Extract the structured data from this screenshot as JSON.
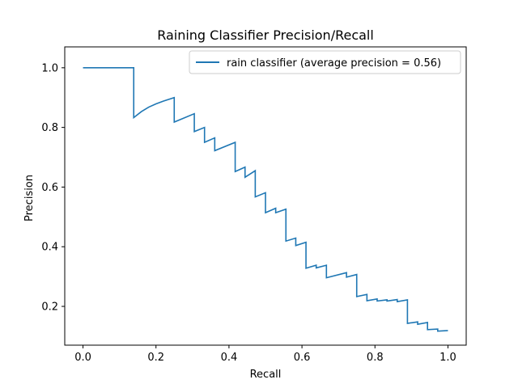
{
  "chart_data": {
    "type": "line",
    "title": "Raining Classifier Precision/Recall",
    "xlabel": "Recall",
    "ylabel": "Precision",
    "xlim": [
      -0.05,
      1.05
    ],
    "ylim": [
      0.07,
      1.07
    ],
    "xticks": [
      0.0,
      0.2,
      0.4,
      0.6,
      0.8,
      1.0
    ],
    "xtick_labels": [
      "0.0",
      "0.2",
      "0.4",
      "0.6",
      "0.8",
      "1.0"
    ],
    "yticks": [
      0.2,
      0.4,
      0.6,
      0.8,
      1.0
    ],
    "ytick_labels": [
      "0.2",
      "0.4",
      "0.6",
      "0.8",
      "1.0"
    ],
    "grid": false,
    "legend_position": "top-right",
    "series": [
      {
        "name": "rain classifier (average precision = 0.56)",
        "color": "#1f77b4",
        "step": true,
        "x": [
          0.0,
          0.139,
          0.139,
          0.16,
          0.18,
          0.2,
          0.22,
          0.25,
          0.25,
          0.305,
          0.305,
          0.333,
          0.333,
          0.361,
          0.361,
          0.417,
          0.417,
          0.444,
          0.444,
          0.472,
          0.472,
          0.5,
          0.5,
          0.528,
          0.528,
          0.556,
          0.556,
          0.583,
          0.583,
          0.611,
          0.611,
          0.639,
          0.639,
          0.667,
          0.667,
          0.722,
          0.722,
          0.75,
          0.75,
          0.778,
          0.778,
          0.806,
          0.806,
          0.833,
          0.833,
          0.861,
          0.861,
          0.889,
          0.889,
          0.917,
          0.917,
          0.944,
          0.944,
          0.972,
          0.972,
          1.0
        ],
        "y": [
          1.0,
          1.0,
          0.833,
          0.853,
          0.868,
          0.879,
          0.888,
          0.9,
          0.818,
          0.846,
          0.786,
          0.8,
          0.75,
          0.765,
          0.722,
          0.75,
          0.652,
          0.667,
          0.633,
          0.655,
          0.567,
          0.581,
          0.514,
          0.529,
          0.514,
          0.526,
          0.419,
          0.429,
          0.404,
          0.415,
          0.328,
          0.338,
          0.329,
          0.338,
          0.296,
          0.313,
          0.298,
          0.307,
          0.233,
          0.24,
          0.219,
          0.225,
          0.218,
          0.222,
          0.218,
          0.223,
          0.216,
          0.222,
          0.143,
          0.148,
          0.14,
          0.146,
          0.122,
          0.124,
          0.117,
          0.119
        ]
      }
    ]
  }
}
